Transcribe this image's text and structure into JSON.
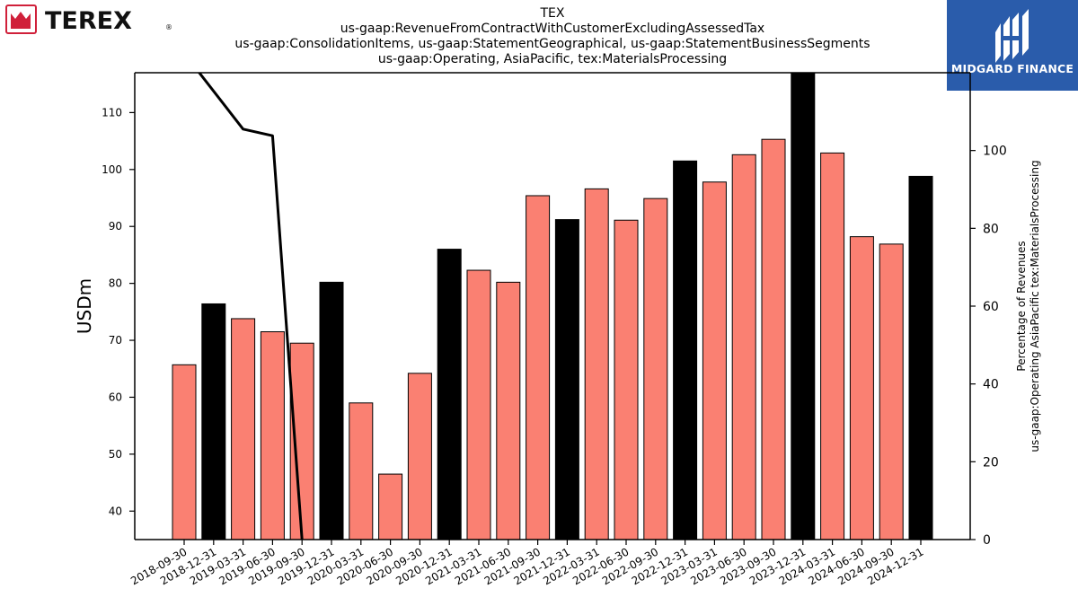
{
  "header": {
    "brand_left": "TEREX",
    "brand_right": "MIDGARD FINANCE",
    "title_lines": [
      "TEX",
      "us-gaap:RevenueFromContractWithCustomerExcludingAssessedTax",
      "us-gaap:ConsolidationItems, us-gaap:StatementGeographical, us-gaap:StatementBusinessSegments",
      "us-gaap:Operating, AsiaPacific, tex:MaterialsProcessing"
    ]
  },
  "colors": {
    "bar_regular": "#fa8072",
    "bar_highlight": "#000000",
    "line": "#000000",
    "terex_red": "#d0203a",
    "midgard_blue": "#2a5cab"
  },
  "chart_data": {
    "type": "bar",
    "categories": [
      "2018-09-30",
      "2018-12-31",
      "2019-03-31",
      "2019-06-30",
      "2019-09-30",
      "2019-12-31",
      "2020-03-31",
      "2020-06-30",
      "2020-09-30",
      "2020-12-31",
      "2021-03-31",
      "2021-06-30",
      "2021-09-30",
      "2021-12-31",
      "2022-03-31",
      "2022-06-30",
      "2022-09-30",
      "2022-12-31",
      "2023-03-31",
      "2023-06-30",
      "2023-09-30",
      "2023-12-31",
      "2024-03-31",
      "2024-06-30",
      "2024-09-30",
      "2024-12-31"
    ],
    "values": [
      65.7,
      76.4,
      73.8,
      71.5,
      69.5,
      80.2,
      59.0,
      46.5,
      64.2,
      86.0,
      82.3,
      80.2,
      95.4,
      91.2,
      96.6,
      91.1,
      94.9,
      101.5,
      97.8,
      102.6,
      105.3,
      117.5,
      102.9,
      88.2,
      86.9,
      98.8
    ],
    "highlight": [
      false,
      true,
      false,
      false,
      false,
      true,
      false,
      false,
      false,
      true,
      false,
      false,
      false,
      true,
      false,
      false,
      false,
      true,
      false,
      false,
      false,
      true,
      false,
      false,
      false,
      true
    ],
    "ylabel": "USDm",
    "ylim": [
      35,
      117
    ],
    "yticks": [
      40,
      50,
      60,
      70,
      80,
      90,
      100,
      110
    ],
    "secondary": {
      "type": "line",
      "ylabel_lines": [
        "Percentage of Revenues",
        "us-gaap:Operating AsiaPacific tex:MaterialsProcessing"
      ],
      "ylim": [
        0,
        120
      ],
      "yticks": [
        0,
        20,
        40,
        60,
        80,
        100
      ],
      "x_index": [
        0,
        2,
        3,
        4
      ],
      "values": [
        125,
        105.5,
        103.8,
        0
      ]
    }
  }
}
